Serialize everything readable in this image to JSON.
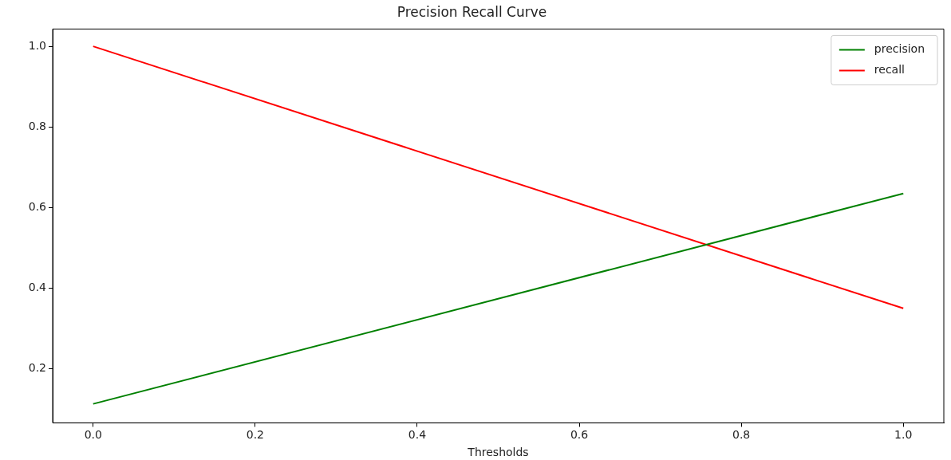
{
  "chart_data": {
    "type": "line",
    "title": "Precision Recall Curve",
    "xlabel": "Thresholds",
    "x": [
      0,
      1
    ],
    "series": [
      {
        "name": "precision",
        "color": "#008000",
        "values": [
          0.113,
          0.635
        ]
      },
      {
        "name": "recall",
        "color": "#ff0000",
        "values": [
          1.0,
          0.35
        ]
      }
    ],
    "xlim": [
      -0.05,
      1.05
    ],
    "xticks": [
      {
        "value": 0,
        "label": "0.0"
      },
      0.2,
      0.4,
      0.6,
      0.8,
      {
        "value": 1,
        "label": "1.0"
      }
    ],
    "ylim": [
      0.066,
      1.043
    ],
    "yticks": [
      0.2,
      0.4,
      0.6,
      0.8,
      {
        "value": 1,
        "label": "1.0"
      }
    ],
    "grid": false,
    "legend": "top right",
    "marker": "none",
    "line_style": "solid"
  }
}
